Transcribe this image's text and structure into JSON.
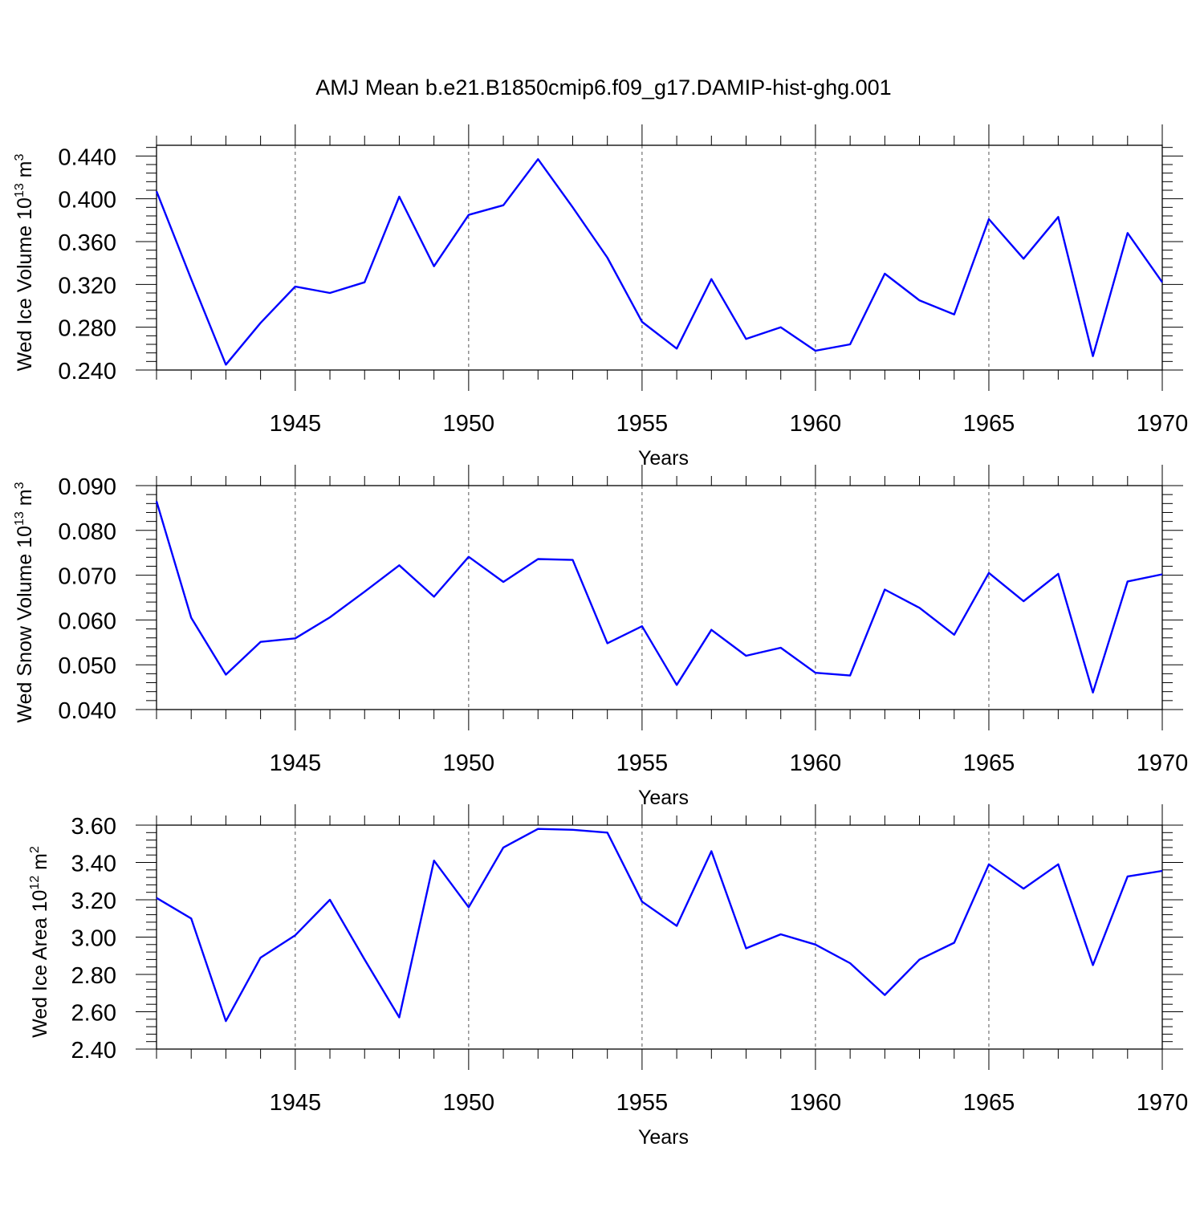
{
  "title": "AMJ Mean b.e21.B1850cmip6.f09_g17.DAMIP-hist-ghg.001",
  "colors": {
    "series": "#0000ff",
    "axis": "#000000",
    "grid": "#555555"
  },
  "chart_data": [
    {
      "type": "line",
      "ylabel": "Wed Ice Volume 10",
      "ylabel_exp": "13",
      "ylabel_unit": " m",
      "ylabel_unit_exp": "3",
      "xlabel": "Years",
      "xlim": [
        1941,
        1970
      ],
      "ylim": [
        0.24,
        0.45
      ],
      "yticks": [
        0.24,
        0.28,
        0.32,
        0.36,
        0.4,
        0.44
      ],
      "ytick_labels": [
        "0.240",
        "0.280",
        "0.320",
        "0.360",
        "0.400",
        "0.440"
      ],
      "xticks": [
        1945,
        1950,
        1955,
        1960,
        1965,
        1970
      ],
      "xtick_labels": [
        "1945",
        "1950",
        "1955",
        "1960",
        "1965",
        "1970"
      ],
      "x": [
        1941,
        1942,
        1943,
        1944,
        1945,
        1946,
        1947,
        1948,
        1949,
        1950,
        1951,
        1952,
        1953,
        1954,
        1955,
        1956,
        1957,
        1958,
        1959,
        1960,
        1961,
        1962,
        1963,
        1964,
        1965,
        1966,
        1967,
        1968,
        1969,
        1970
      ],
      "values": [
        0.407,
        0.325,
        0.245,
        0.284,
        0.318,
        0.312,
        0.322,
        0.402,
        0.337,
        0.385,
        0.394,
        0.437,
        0.392,
        0.345,
        0.285,
        0.26,
        0.325,
        0.269,
        0.28,
        0.258,
        0.264,
        0.33,
        0.305,
        0.292,
        0.381,
        0.344,
        0.383,
        0.253,
        0.368,
        0.322
      ]
    },
    {
      "type": "line",
      "ylabel": "Wed Snow Volume 10",
      "ylabel_exp": "13",
      "ylabel_unit": " m",
      "ylabel_unit_exp": "3",
      "xlabel": "Years",
      "xlim": [
        1941,
        1970
      ],
      "ylim": [
        0.04,
        0.09
      ],
      "yticks": [
        0.04,
        0.05,
        0.06,
        0.07,
        0.08,
        0.09
      ],
      "ytick_labels": [
        "0.040",
        "0.050",
        "0.060",
        "0.070",
        "0.080",
        "0.090"
      ],
      "xticks": [
        1945,
        1950,
        1955,
        1960,
        1965,
        1970
      ],
      "xtick_labels": [
        "1945",
        "1950",
        "1955",
        "1960",
        "1965",
        "1970"
      ],
      "x": [
        1941,
        1942,
        1943,
        1944,
        1945,
        1946,
        1947,
        1948,
        1949,
        1950,
        1951,
        1952,
        1953,
        1954,
        1955,
        1956,
        1957,
        1958,
        1959,
        1960,
        1961,
        1962,
        1963,
        1964,
        1965,
        1966,
        1967,
        1968,
        1969,
        1970
      ],
      "values": [
        0.0865,
        0.0605,
        0.0478,
        0.0551,
        0.0559,
        0.0606,
        0.0663,
        0.0722,
        0.0652,
        0.0741,
        0.0685,
        0.0736,
        0.0734,
        0.0548,
        0.0586,
        0.0455,
        0.0578,
        0.052,
        0.0538,
        0.0482,
        0.0476,
        0.0668,
        0.0627,
        0.0567,
        0.0705,
        0.0642,
        0.0703,
        0.0438,
        0.0686,
        0.0702
      ]
    },
    {
      "type": "line",
      "ylabel": "Wed Ice Area 10",
      "ylabel_exp": "12",
      "ylabel_unit": " m",
      "ylabel_unit_exp": "2",
      "xlabel": "Years",
      "xlim": [
        1941,
        1970
      ],
      "ylim": [
        2.4,
        3.6
      ],
      "yticks": [
        2.4,
        2.6,
        2.8,
        3.0,
        3.2,
        3.4,
        3.6
      ],
      "ytick_labels": [
        "2.40",
        "2.60",
        "2.80",
        "3.00",
        "3.20",
        "3.40",
        "3.60"
      ],
      "xticks": [
        1945,
        1950,
        1955,
        1960,
        1965,
        1970
      ],
      "xtick_labels": [
        "1945",
        "1950",
        "1955",
        "1960",
        "1965",
        "1970"
      ],
      "x": [
        1941,
        1942,
        1943,
        1944,
        1945,
        1946,
        1947,
        1948,
        1949,
        1950,
        1951,
        1952,
        1953,
        1954,
        1955,
        1956,
        1957,
        1958,
        1959,
        1960,
        1961,
        1962,
        1963,
        1964,
        1965,
        1966,
        1967,
        1968,
        1969,
        1970
      ],
      "values": [
        3.21,
        3.1,
        2.55,
        2.89,
        3.01,
        3.2,
        2.88,
        2.57,
        3.41,
        3.16,
        3.48,
        3.58,
        3.575,
        3.56,
        3.19,
        3.06,
        3.46,
        2.94,
        3.015,
        2.96,
        2.86,
        2.69,
        2.88,
        2.97,
        3.39,
        3.26,
        3.39,
        2.85,
        3.325,
        3.355
      ]
    }
  ]
}
